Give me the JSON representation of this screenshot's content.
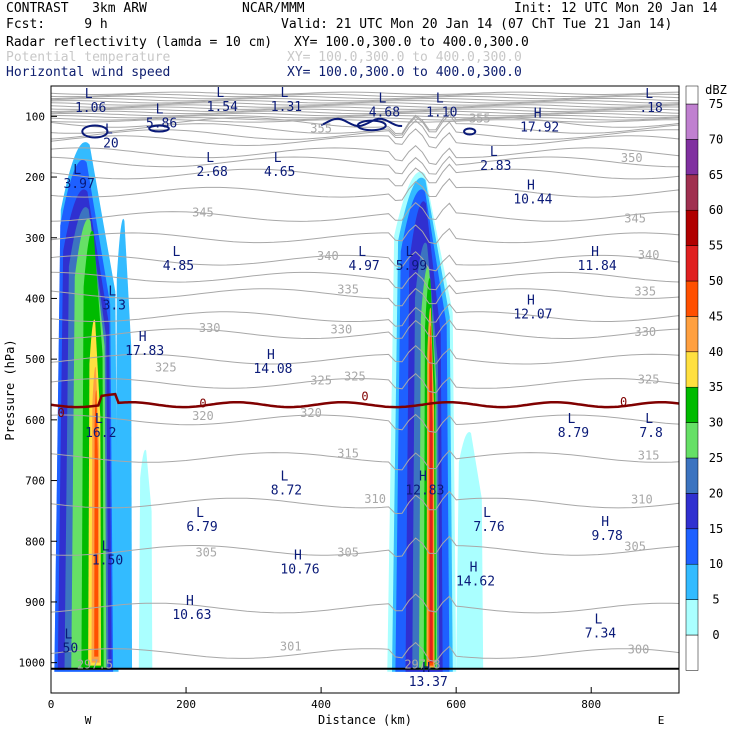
{
  "header": {
    "model": "CONTRAST   3km ARW",
    "center": "NCAR/MMM",
    "init": "Init: 12 UTC Mon 20 Jan 14",
    "fcst": "Fcst:     9 h",
    "valid": "Valid: 21 UTC Mon 20 Jan 14 (07 ChT Tue 21 Jan 14)",
    "fields": [
      {
        "name": "Radar reflectivity (lamda = 10 cm)",
        "xy": "XY= 100.0,300.0 to 400.0,300.0",
        "style": "black"
      },
      {
        "name": "Potential temperature",
        "xy": "XY= 100.0,300.0 to 400.0,300.0",
        "style": "gray"
      },
      {
        "name": "Horizontal wind speed",
        "xy": "XY= 100.0,300.0 to 400.0,300.0",
        "style": "navy"
      }
    ]
  },
  "colorbar": {
    "unit": "dBZ",
    "levels": [
      0,
      5,
      10,
      15,
      20,
      25,
      30,
      35,
      40,
      45,
      50,
      55,
      60,
      65,
      70,
      75
    ],
    "colors": [
      "#ffffff",
      "#aaffff",
      "#33bbff",
      "#1e60ff",
      "#3030d0",
      "#3c74c0",
      "#66e066",
      "#00bb00",
      "#ffe040",
      "#ffa040",
      "#ff5000",
      "#e02020",
      "#b00000",
      "#a03050",
      "#8030a0",
      "#c080d0"
    ]
  },
  "colors": {
    "theta": "#a8a8a8",
    "wind": "#0a1a78",
    "freeze": "#800000"
  },
  "chart_data": {
    "type": "heatmap",
    "xlabel": "Distance (km)",
    "ylabel": "Pressure (hPa)",
    "xlim": [
      0,
      930
    ],
    "ylim": [
      1050,
      50
    ],
    "xticks": [
      0,
      200,
      400,
      600,
      800
    ],
    "yticks": [
      100,
      200,
      300,
      400,
      500,
      600,
      700,
      800,
      900,
      1000
    ],
    "x_end_labels": {
      "left": "W",
      "right": "E"
    },
    "theta_labels": [
      {
        "v": "355",
        "x": 400,
        "p": 127
      },
      {
        "v": "355",
        "x": 635,
        "p": 110
      },
      {
        "v": "350",
        "x": 860,
        "p": 175
      },
      {
        "v": "345",
        "x": 225,
        "p": 265
      },
      {
        "v": "345",
        "x": 865,
        "p": 275
      },
      {
        "v": "340",
        "x": 410,
        "p": 337
      },
      {
        "v": "340",
        "x": 885,
        "p": 335
      },
      {
        "v": "335",
        "x": 440,
        "p": 392
      },
      {
        "v": "335",
        "x": 880,
        "p": 395
      },
      {
        "v": "330",
        "x": 235,
        "p": 455
      },
      {
        "v": "330",
        "x": 430,
        "p": 458
      },
      {
        "v": "330",
        "x": 880,
        "p": 462
      },
      {
        "v": "325",
        "x": 170,
        "p": 520
      },
      {
        "v": "325",
        "x": 400,
        "p": 542
      },
      {
        "v": "325",
        "x": 450,
        "p": 535
      },
      {
        "v": "325",
        "x": 885,
        "p": 540
      },
      {
        "v": "320",
        "x": 225,
        "p": 600
      },
      {
        "v": "320",
        "x": 385,
        "p": 595
      },
      {
        "v": "315",
        "x": 440,
        "p": 662
      },
      {
        "v": "315",
        "x": 885,
        "p": 665
      },
      {
        "v": "310",
        "x": 480,
        "p": 737
      },
      {
        "v": "310",
        "x": 875,
        "p": 738
      },
      {
        "v": "305",
        "x": 230,
        "p": 825
      },
      {
        "v": "305",
        "x": 440,
        "p": 825
      },
      {
        "v": "305",
        "x": 865,
        "p": 815
      },
      {
        "v": "301",
        "x": 355,
        "p": 980
      },
      {
        "v": "300",
        "x": 870,
        "p": 985
      },
      {
        "v": "297.5",
        "x": 65,
        "p": 1010
      },
      {
        "v": "297.8",
        "x": 550,
        "p": 1010
      },
      {
        "v": "0",
        "x": 225,
        "p": 580
      },
      {
        "v": "0",
        "x": 465,
        "p": 568
      },
      {
        "v": "0",
        "x": 848,
        "p": 577
      },
      {
        "v": "0",
        "x": 15,
        "p": 595
      }
    ],
    "extrema": [
      {
        "t": "L",
        "v": "1.06",
        "x": 35,
        "p": 80
      },
      {
        "t": "L",
        "v": "5.86",
        "x": 140,
        "p": 105
      },
      {
        "t": "L",
        "v": "1.54",
        "x": 230,
        "p": 78
      },
      {
        "t": "L",
        "v": "1.31",
        "x": 325,
        "p": 78
      },
      {
        "t": "L",
        "v": "4.68",
        "x": 470,
        "p": 87
      },
      {
        "t": "L",
        "v": "1.10",
        "x": 555,
        "p": 87
      },
      {
        "t": "H",
        "v": "17.92",
        "x": 700,
        "p": 112
      },
      {
        "t": "L",
        "v": ".18",
        "x": 865,
        "p": 80
      },
      {
        "t": "L",
        "v": "20",
        "x": 65,
        "p": 138
      },
      {
        "t": "L",
        "v": "2.83",
        "x": 635,
        "p": 175
      },
      {
        "t": "L",
        "v": "2.68",
        "x": 215,
        "p": 185
      },
      {
        "t": "L",
        "v": "4.65",
        "x": 315,
        "p": 185
      },
      {
        "t": "L",
        "v": "3.97",
        "x": 18,
        "p": 205
      },
      {
        "t": "H",
        "v": "10.44",
        "x": 690,
        "p": 230
      },
      {
        "t": "L",
        "v": "4.85",
        "x": 165,
        "p": 340
      },
      {
        "t": "L",
        "v": "4.97",
        "x": 440,
        "p": 340
      },
      {
        "t": "L",
        "v": "5.99",
        "x": 510,
        "p": 340
      },
      {
        "t": "H",
        "v": "11.84",
        "x": 785,
        "p": 340
      },
      {
        "t": "L",
        "v": "3.3",
        "x": 70,
        "p": 405
      },
      {
        "t": "H",
        "v": "12.07",
        "x": 690,
        "p": 420
      },
      {
        "t": "H",
        "v": "17.83",
        "x": 115,
        "p": 480
      },
      {
        "t": "H",
        "v": "14.08",
        "x": 305,
        "p": 510
      },
      {
        "t": "L",
        "v": "16.2",
        "x": 50,
        "p": 615
      },
      {
        "t": "L",
        "v": "8.79",
        "x": 750,
        "p": 615
      },
      {
        "t": "L",
        "v": "7.8",
        "x": 865,
        "p": 615
      },
      {
        "t": "L",
        "v": "8.72",
        "x": 325,
        "p": 710
      },
      {
        "t": "H",
        "v": "12.83",
        "x": 530,
        "p": 710
      },
      {
        "t": "L",
        "v": "6.79",
        "x": 200,
        "p": 770
      },
      {
        "t": "L",
        "v": "7.76",
        "x": 625,
        "p": 770
      },
      {
        "t": "H",
        "v": "9.78",
        "x": 800,
        "p": 785
      },
      {
        "t": "L",
        "v": "1.50",
        "x": 60,
        "p": 825
      },
      {
        "t": "H",
        "v": "10.76",
        "x": 345,
        "p": 840
      },
      {
        "t": "H",
        "v": "14.62",
        "x": 605,
        "p": 860
      },
      {
        "t": "H",
        "v": "10.63",
        "x": 185,
        "p": 915
      },
      {
        "t": "L",
        "v": "7.34",
        "x": 790,
        "p": 945
      },
      {
        "t": "L",
        "v": "50",
        "x": 5,
        "p": 970
      },
      {
        "t": "H",
        "v": "13.37",
        "x": 535,
        "p": 1025
      }
    ],
    "reflectivity_cells": [
      {
        "dbz": 10,
        "x0": 5,
        "x1": 100,
        "p0": 1015,
        "p1": 120
      },
      {
        "dbz": 15,
        "x0": 5,
        "x1": 92,
        "p0": 1015,
        "p1": 150
      },
      {
        "dbz": 20,
        "x0": 10,
        "x1": 90,
        "p0": 1012,
        "p1": 200
      },
      {
        "dbz": 25,
        "x0": 20,
        "x1": 85,
        "p0": 1012,
        "p1": 230
      },
      {
        "dbz": 30,
        "x0": 30,
        "x1": 82,
        "p0": 1012,
        "p1": 250
      },
      {
        "dbz": 35,
        "x0": 45,
        "x1": 78,
        "p0": 1010,
        "p1": 270
      },
      {
        "dbz": 40,
        "x0": 55,
        "x1": 74,
        "p0": 1005,
        "p1": 420
      },
      {
        "dbz": 45,
        "x0": 60,
        "x1": 72,
        "p0": 1000,
        "p1": 500
      },
      {
        "dbz": 50,
        "x0": 64,
        "x1": 70,
        "p0": 990,
        "p1": 540
      },
      {
        "dbz": 10,
        "x0": 95,
        "x1": 120,
        "p0": 1010,
        "p1": 250
      },
      {
        "dbz": 5,
        "x0": 130,
        "x1": 150,
        "p0": 1010,
        "p1": 640
      },
      {
        "dbz": 5,
        "x0": 498,
        "x1": 600,
        "p0": 1015,
        "p1": 170
      },
      {
        "dbz": 10,
        "x0": 505,
        "x1": 595,
        "p0": 1015,
        "p1": 180
      },
      {
        "dbz": 15,
        "x0": 510,
        "x1": 590,
        "p0": 1015,
        "p1": 200
      },
      {
        "dbz": 20,
        "x0": 525,
        "x1": 580,
        "p0": 1015,
        "p1": 220
      },
      {
        "dbz": 25,
        "x0": 535,
        "x1": 575,
        "p0": 1012,
        "p1": 290
      },
      {
        "dbz": 30,
        "x0": 545,
        "x1": 572,
        "p0": 1012,
        "p1": 330
      },
      {
        "dbz": 35,
        "x0": 552,
        "x1": 570,
        "p0": 1010,
        "p1": 350
      },
      {
        "dbz": 45,
        "x0": 556,
        "x1": 568,
        "p0": 1008,
        "p1": 400
      },
      {
        "dbz": 50,
        "x0": 559,
        "x1": 566,
        "p0": 1005,
        "p1": 430
      },
      {
        "dbz": 55,
        "x0": 561,
        "x1": 565,
        "p0": 1000,
        "p1": 460
      },
      {
        "dbz": 5,
        "x0": 600,
        "x1": 640,
        "p0": 1010,
        "p1": 610
      }
    ],
    "freezing_level_p": 575
  }
}
